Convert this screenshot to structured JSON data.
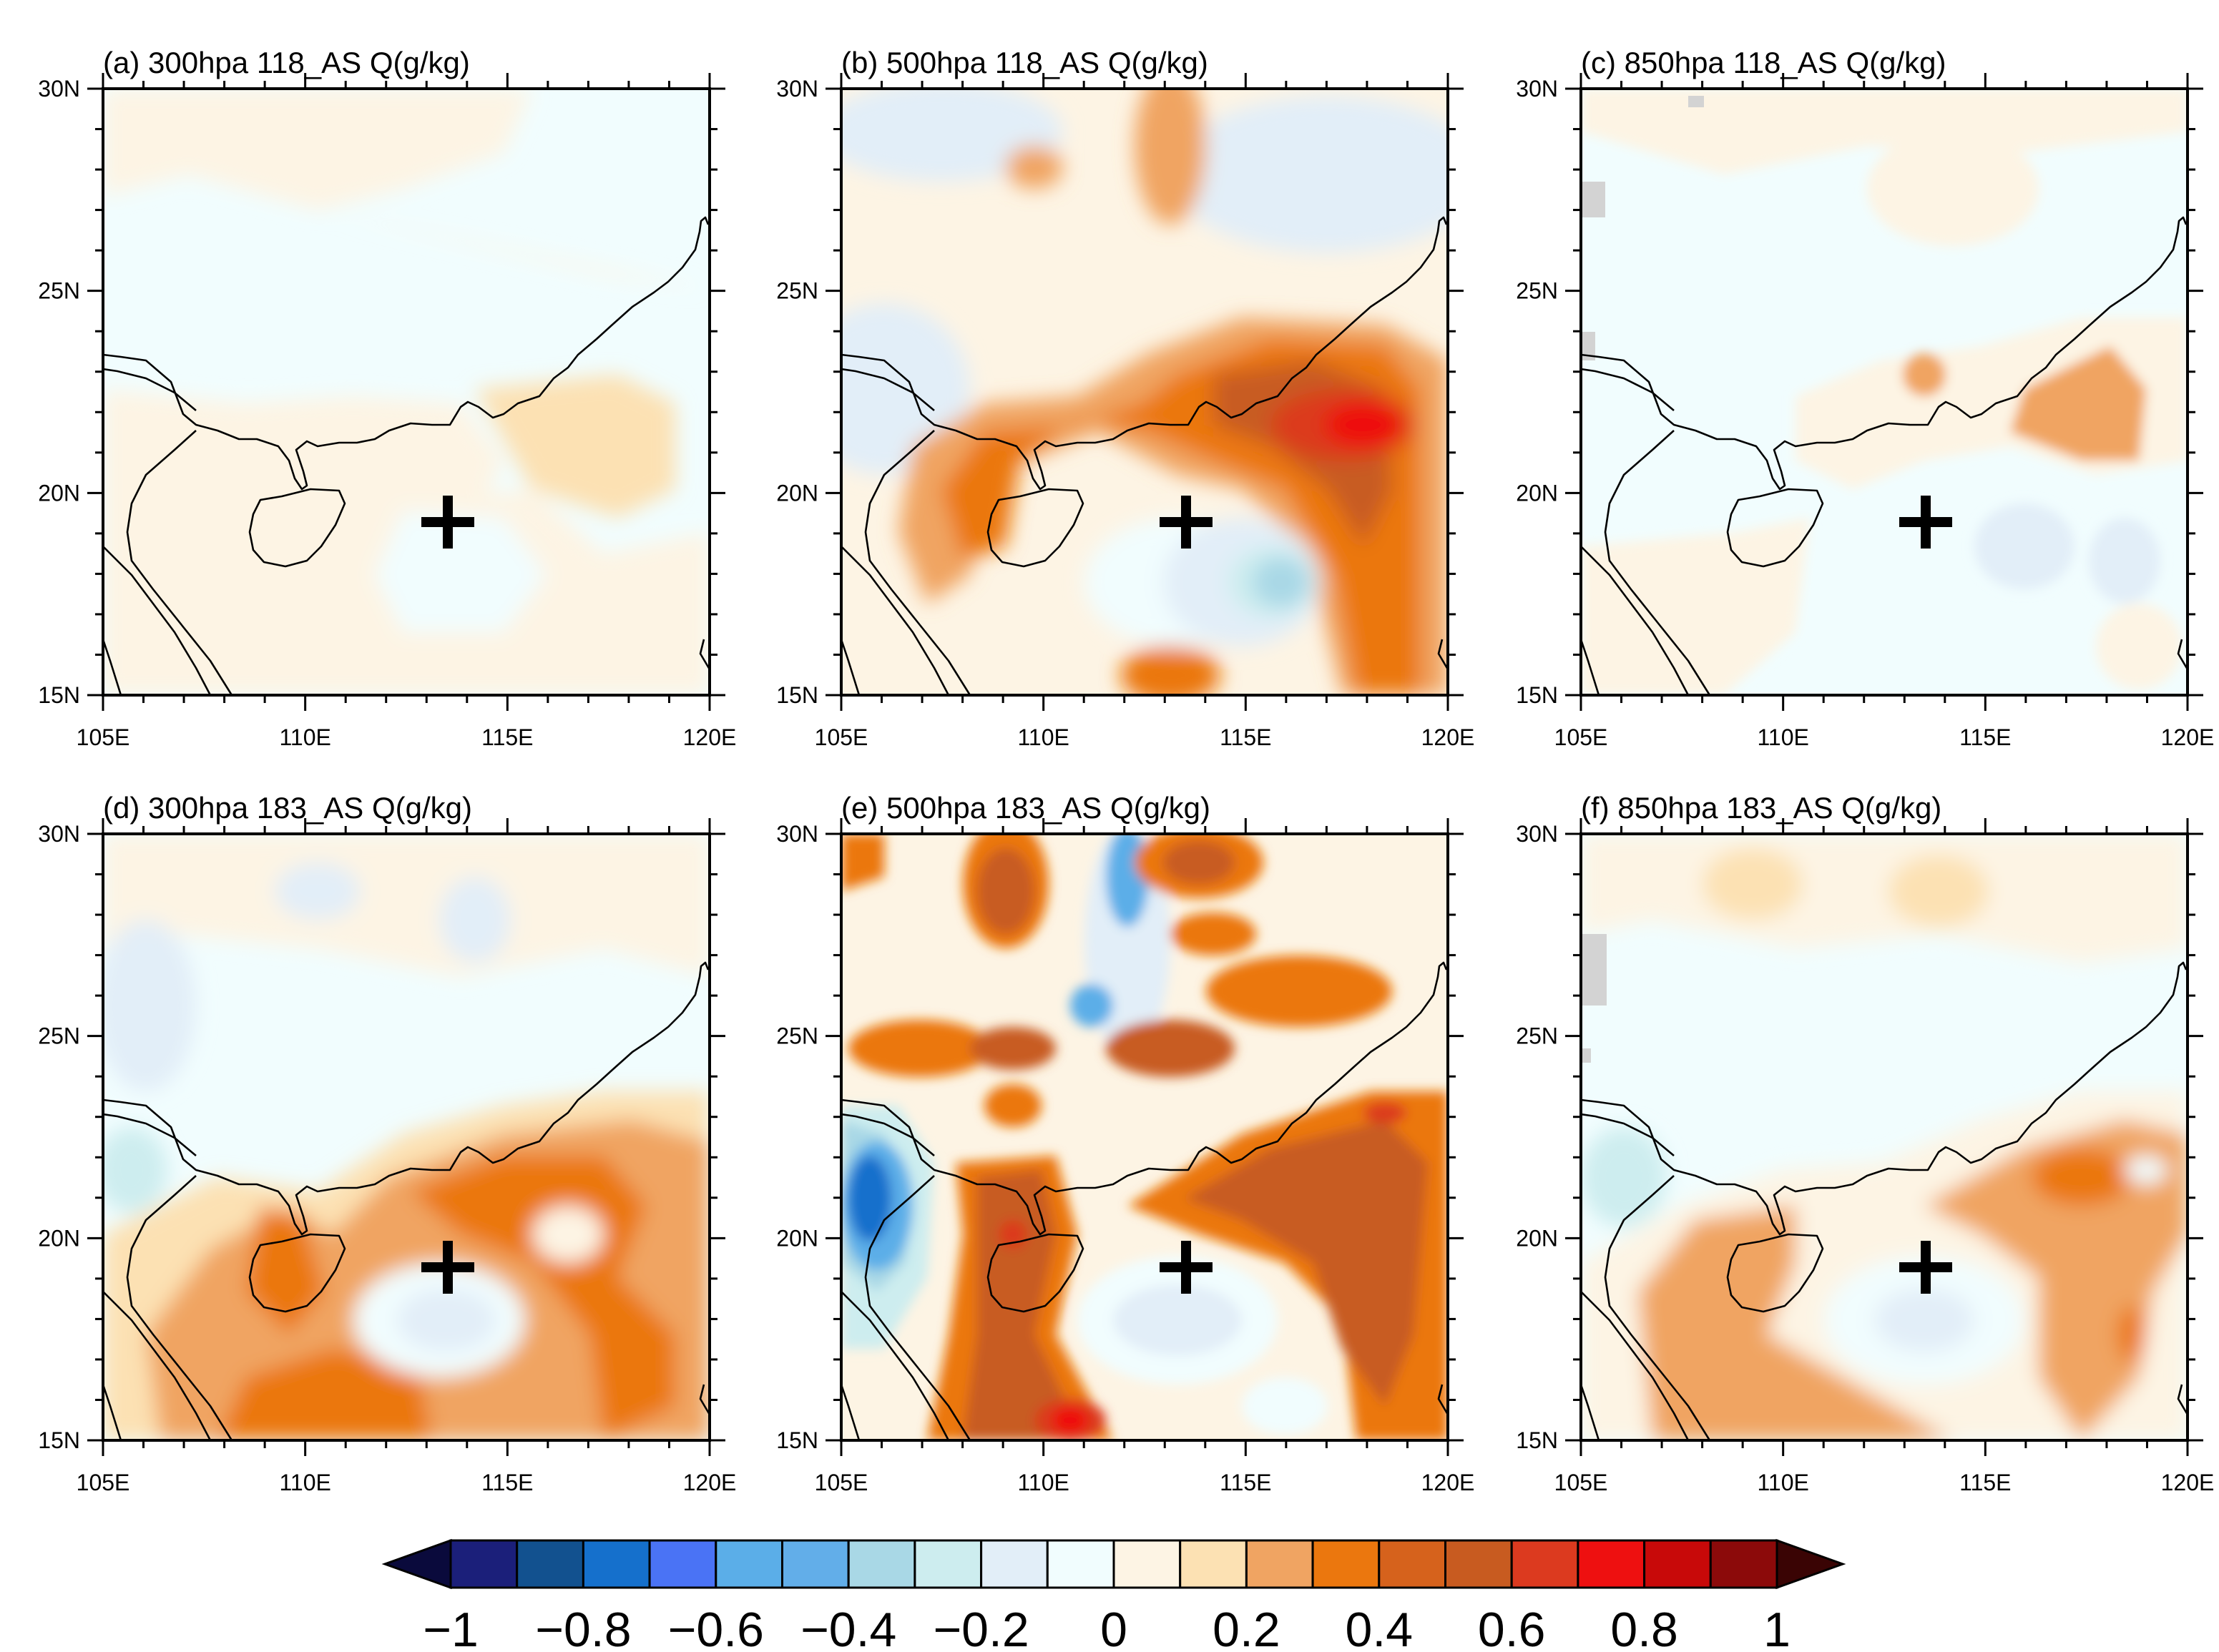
{
  "figure": {
    "domain": {
      "lon": [
        105,
        120
      ],
      "lat": [
        15,
        30
      ]
    },
    "lon_ticks": [
      {
        "value": 105,
        "label": "105E"
      },
      {
        "value": 110,
        "label": "110E"
      },
      {
        "value": 115,
        "label": "115E"
      },
      {
        "value": 120,
        "label": "120E"
      }
    ],
    "lat_ticks": [
      {
        "value": 30,
        "label": "30N"
      },
      {
        "value": 25,
        "label": "25N"
      },
      {
        "value": 20,
        "label": "20N"
      },
      {
        "value": 15,
        "label": "15N"
      }
    ],
    "marker": {
      "lon": 113.5,
      "lat": 19.3,
      "symbol": "+"
    }
  },
  "panels": [
    {
      "id": "a",
      "title": "(a) 300hpa 118_AS  Q(g/kg)",
      "background": "#F1FDFE"
    },
    {
      "id": "b",
      "title": "(b) 500hpa 118_AS  Q(g/kg)",
      "background": "#FDF4E4"
    },
    {
      "id": "c",
      "title": "(c) 850hpa 118_AS  Q(g/kg)",
      "background": "#F1FDFE"
    },
    {
      "id": "d",
      "title": "(d) 300hpa 183_AS  Q(g/kg)",
      "background": "#F1FDFE"
    },
    {
      "id": "e",
      "title": "(e) 500hpa 183_AS  Q(g/kg)",
      "background": "#FDF4E4"
    },
    {
      "id": "f",
      "title": "(f) 850hpa 183_AS  Q(g/kg)",
      "background": "#FDF4E4"
    }
  ],
  "colorbar": {
    "colors": [
      "#0A0A3C",
      "#1B1F7A",
      "#12518F",
      "#1570CC",
      "#4A73F5",
      "#5BAEE8",
      "#62AEE9",
      "#A9D8E6",
      "#CDEDEF",
      "#E2EEF8",
      "#F1FDFE",
      "#FDF4E4",
      "#FCE1B3",
      "#F0A462",
      "#EB770E",
      "#D6621C",
      "#C85B20",
      "#DC3A1F",
      "#EE1010",
      "#C80909",
      "#8C0A0A",
      "#3A0404"
    ],
    "labels": [
      "−1",
      "−0.8",
      "−0.6",
      "−0.4",
      "−0.2",
      "0",
      "0.2",
      "0.4",
      "0.6",
      "0.8",
      "1"
    ]
  }
}
